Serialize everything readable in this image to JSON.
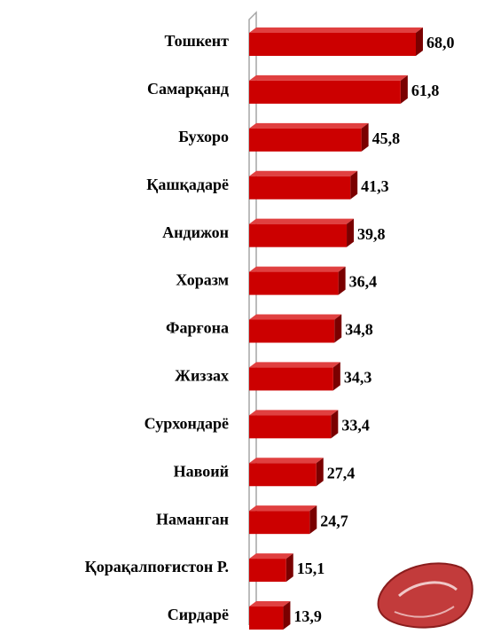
{
  "chart_data": {
    "type": "bar",
    "orientation": "horizontal",
    "categories": [
      "Тошкент",
      "Самарқанд",
      "Бухоро",
      "Қашқадарё",
      "Андижон",
      "Хоразм",
      "Фарғона",
      "Жиззах",
      "Сурхондарё",
      "Навоий",
      "Наманган",
      "Қорақалпоғистон Р.",
      "Сирдарё"
    ],
    "values": [
      68.0,
      61.8,
      45.8,
      41.3,
      39.8,
      36.4,
      34.8,
      34.3,
      33.4,
      27.4,
      24.7,
      15.1,
      13.9
    ],
    "value_labels": [
      "68,0",
      "61,8",
      "45,8",
      "41,3",
      "39,8",
      "36,4",
      "34,8",
      "34,3",
      "33,4",
      "27,4",
      "24,7",
      "15,1",
      "13,9"
    ],
    "color": "#cc0000"
  }
}
